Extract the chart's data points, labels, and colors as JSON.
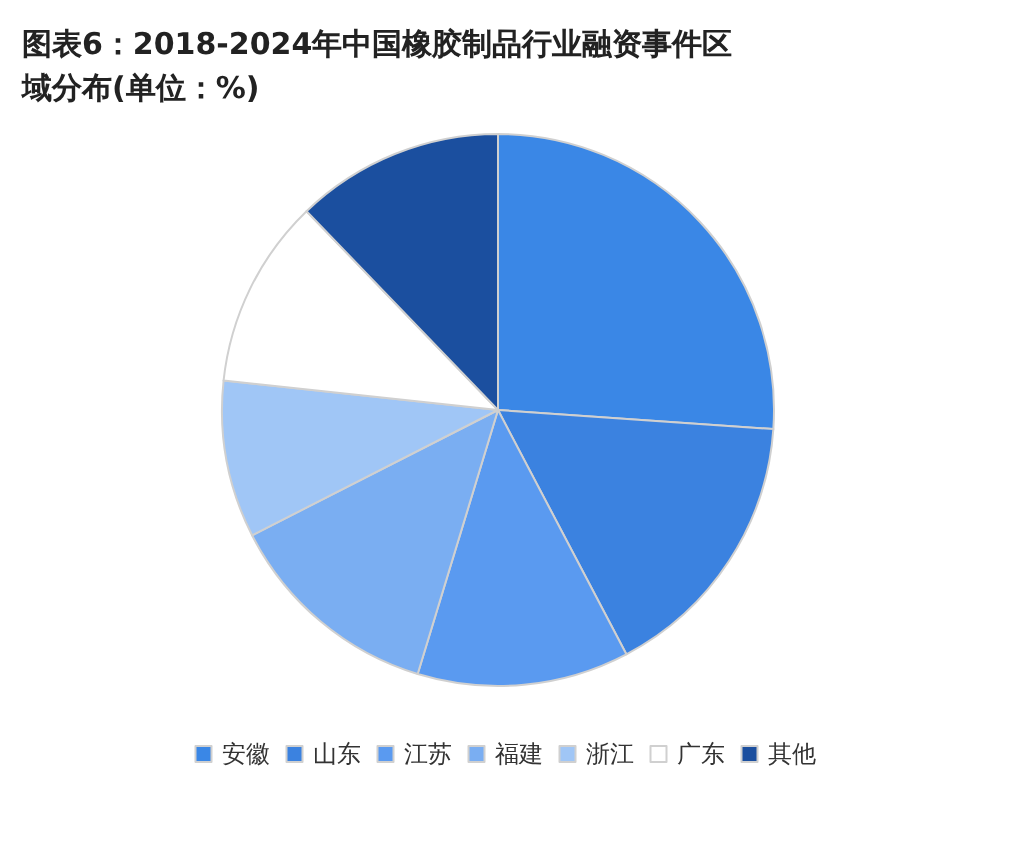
{
  "chart_data": {
    "type": "pie",
    "title": "图表6：2018-2024年中国橡胶制品行业融资事件区域分布(单位：%)",
    "categories": [
      "安徽",
      "山东",
      "江苏",
      "福建",
      "浙江",
      "广东",
      "其他"
    ],
    "values": [
      26.1,
      16.2,
      12.4,
      12.8,
      9.2,
      11.1,
      12.2
    ],
    "colors": [
      "#3a87e6",
      "#3b82e0",
      "#5a9af0",
      "#7aaef2",
      "#a0c6f6",
      "#ffffff",
      "#1b4f9f"
    ],
    "legend": "bottom"
  }
}
